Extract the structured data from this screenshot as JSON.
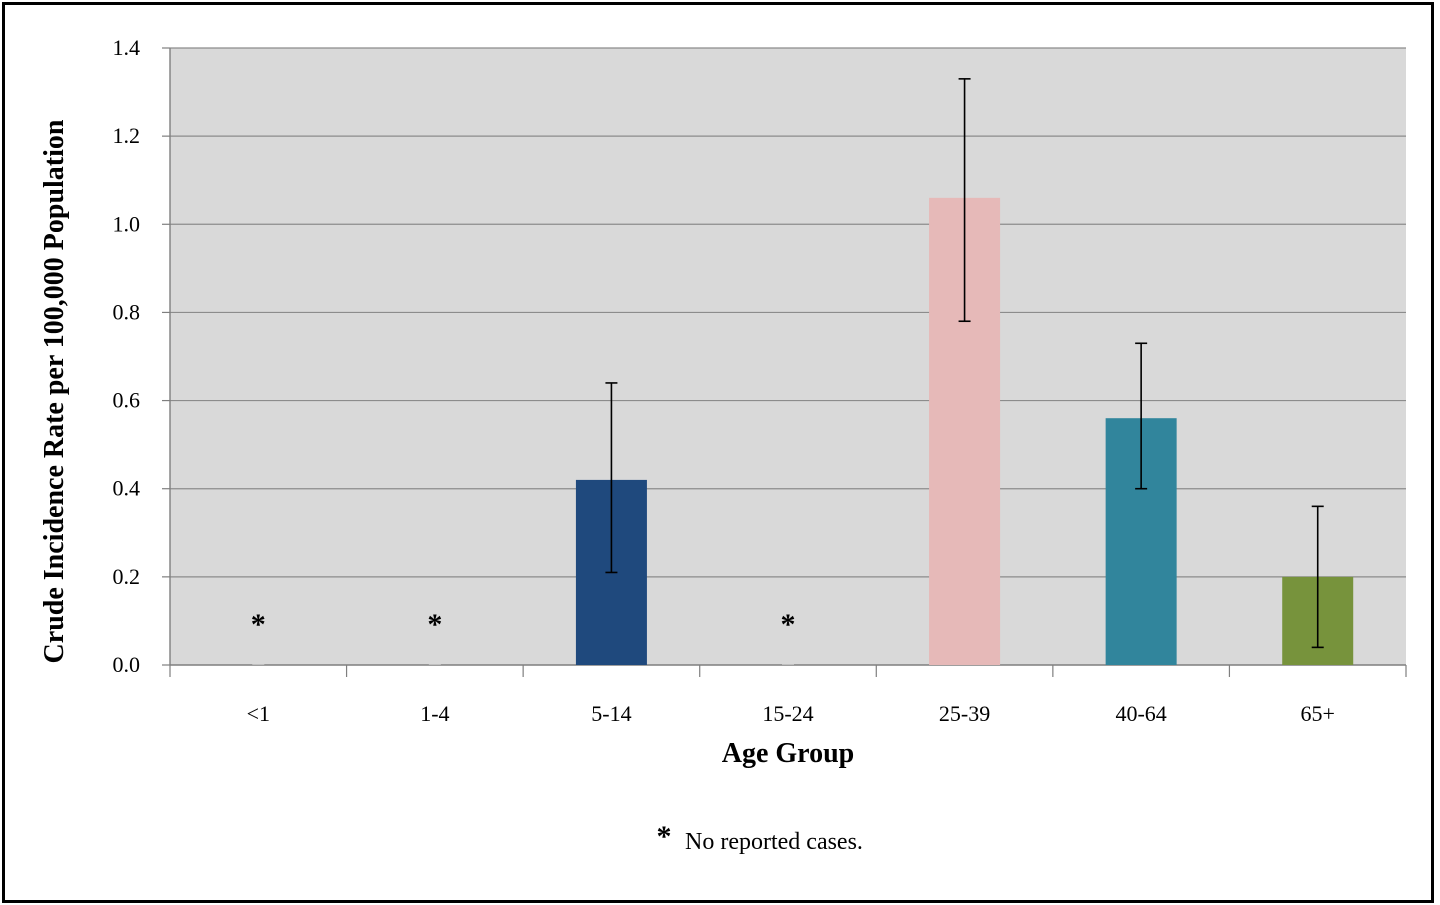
{
  "chart_data": {
    "type": "bar",
    "title": "",
    "xlabel": "Age Group",
    "ylabel": "Crude Incidence Rate per 100,000 Population",
    "ylim": [
      0,
      1.4
    ],
    "yticks": [
      "0.0",
      "0.2",
      "0.4",
      "0.6",
      "0.8",
      "1.0",
      "1.2",
      "1.4"
    ],
    "categories": [
      "<1",
      "1-4",
      "5-14",
      "15-24",
      "25-39",
      "40-64",
      "65+"
    ],
    "values": [
      0,
      0,
      0.42,
      0,
      1.06,
      0.56,
      0.2
    ],
    "error_low": [
      null,
      null,
      0.21,
      null,
      0.78,
      0.4,
      0.04
    ],
    "error_high": [
      null,
      null,
      0.64,
      null,
      1.33,
      0.73,
      0.36
    ],
    "colors": [
      "#1f497d",
      "#1f497d",
      "#1f497d",
      "#1f497d",
      "#e6b9b8",
      "#31859c",
      "#77933c"
    ],
    "no_case_marker": "*",
    "no_case_categories": [
      "<1",
      "1-4",
      "15-24"
    ],
    "grid": true,
    "plot_background": "#d9d9d9",
    "footnote_marker": "*",
    "footnote": "No reported cases."
  }
}
